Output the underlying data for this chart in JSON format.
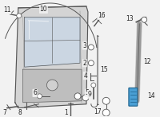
{
  "bg_color": "#f2f2f2",
  "dark": "#555555",
  "mid": "#999999",
  "light_gray": "#cccccc",
  "blue_fill": "#4a9fd4",
  "blue_edge": "#1a5f8a",
  "window_fill": "#c8d8e8",
  "body_fill": "#d4d4d4",
  "figw": 2.0,
  "figh": 1.47,
  "dpi": 100
}
